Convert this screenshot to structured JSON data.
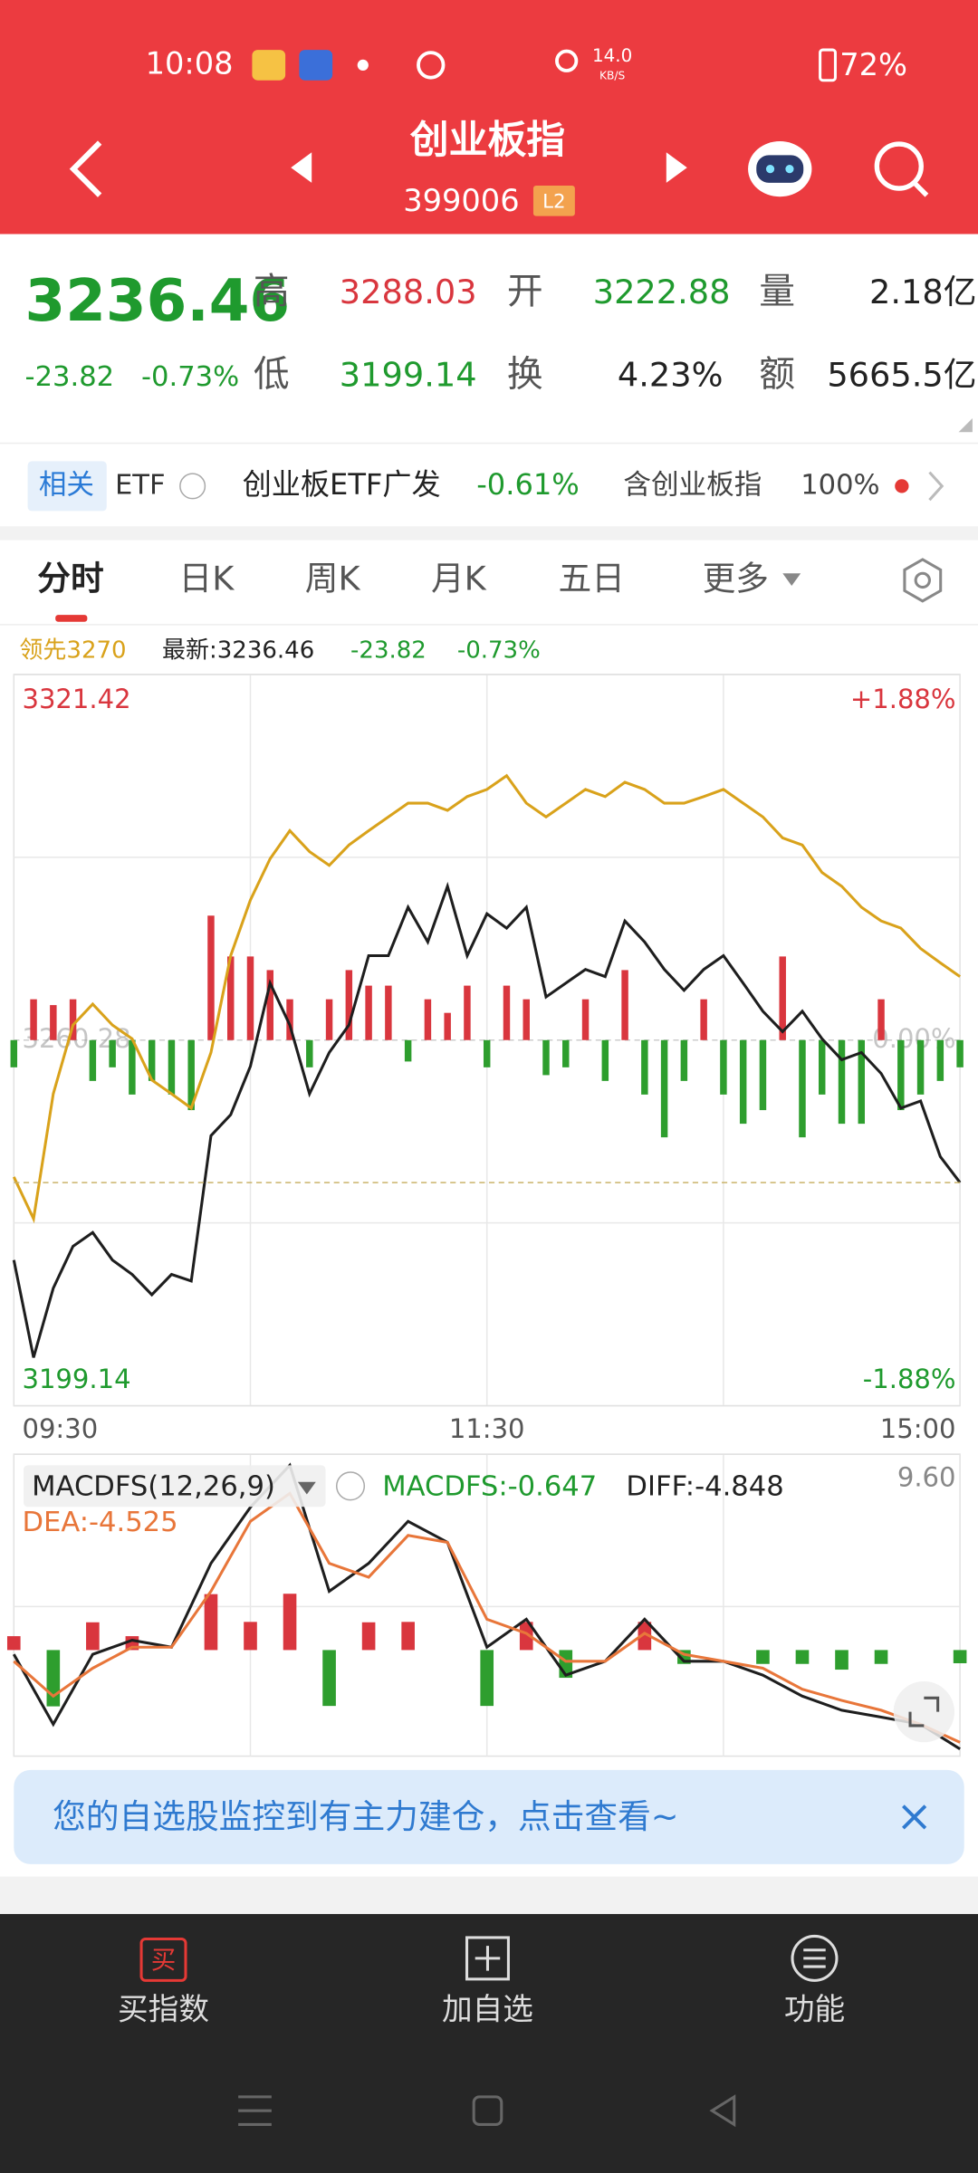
{
  "status_bar": {
    "time": "10:08",
    "net_speed": "14.0",
    "net_unit": "KB/S",
    "battery": "72%"
  },
  "header": {
    "title": "创业板指",
    "code": "399006",
    "badge": "L2"
  },
  "quote": {
    "price": "3236.46",
    "change": "-23.82",
    "change_pct": "-0.73%",
    "fields": [
      {
        "label": "高",
        "value": "3288.03",
        "color": "#d9363e"
      },
      {
        "label": "开",
        "value": "3222.88",
        "color": "#1f9a2e"
      },
      {
        "label": "量",
        "value": "2.18亿",
        "color": "#222222"
      },
      {
        "label": "低",
        "value": "3199.14",
        "color": "#1f9a2e"
      },
      {
        "label": "换",
        "value": "4.23%",
        "color": "#222222"
      },
      {
        "label": "额",
        "value": "5665.5亿",
        "color": "#222222"
      }
    ]
  },
  "etf": {
    "tag": "相关",
    "type": "ETF",
    "name": "创业板ETF广发",
    "change": "-0.61%",
    "holding_label": "含创业板指",
    "holding": "100%"
  },
  "tabs": [
    "分时",
    "日K",
    "周K",
    "月K",
    "五日",
    "更多"
  ],
  "chart_data": [
    {
      "type": "line",
      "legend": [
        "-23.82",
        "-0.73%"
      ],
      "series": [
        {
          "name": "领先3270",
          "color": "#d9a21b",
          "values": [
            3237.4,
            3230.4,
            3251.3,
            3262.8,
            3266.3,
            3262.8,
            3260.5,
            3253.6,
            3251.3,
            3248.9,
            3258.2,
            3274.4,
            3283.7,
            3290.6,
            3295.3,
            3291.8,
            3289.5,
            3292.9,
            3295.3,
            3297.6,
            3299.9,
            3299.9,
            3298.7,
            3301.0,
            3302.2,
            3304.5,
            3299.9,
            3297.6,
            3299.9,
            3302.2,
            3301.0,
            3303.4,
            3302.2,
            3299.9,
            3299.9,
            3301.0,
            3302.2,
            3299.9,
            3297.6,
            3294.1,
            3292.9,
            3288.3,
            3286.0,
            3282.5,
            3280.2,
            3279.0,
            3275.6,
            3273.2,
            3270.9
          ]
        },
        {
          "name": "最新:3236.46",
          "color": "#1e1e1e",
          "values": [
            3223.5,
            3207.2,
            3218.8,
            3225.8,
            3228.1,
            3223.5,
            3221.1,
            3217.7,
            3221.1,
            3220.0,
            3244.3,
            3247.8,
            3255.9,
            3269.8,
            3262.8,
            3251.3,
            3258.2,
            3262.8,
            3274.4,
            3274.4,
            3282.5,
            3276.7,
            3286.0,
            3274.4,
            3281.4,
            3279.0,
            3282.5,
            3267.5,
            3269.8,
            3272.1,
            3270.9,
            3280.2,
            3276.7,
            3272.1,
            3268.6,
            3272.1,
            3274.4,
            3269.8,
            3265.1,
            3261.7,
            3265.1,
            3260.5,
            3257.0,
            3258.2,
            3254.7,
            3248.9,
            3250.1,
            3240.8,
            3236.46
          ]
        }
      ],
      "bars": {
        "axis": "y2",
        "up_color": "#d9363e",
        "down_color": "#2e9e2e",
        "values": [
          -0.14,
          0.21,
          0.18,
          0.21,
          -0.21,
          -0.14,
          -0.28,
          -0.21,
          -0.28,
          -0.36,
          0.64,
          0.43,
          0.43,
          0.36,
          0.21,
          -0.14,
          0.21,
          0.36,
          0.28,
          0.28,
          -0.11,
          0.21,
          0.14,
          0.28,
          -0.14,
          0.28,
          0.21,
          -0.18,
          -0.14,
          0.21,
          -0.21,
          0.36,
          -0.28,
          -0.5,
          -0.21,
          0.21,
          -0.28,
          -0.43,
          -0.36,
          0.43,
          -0.5,
          -0.28,
          -0.43,
          -0.43,
          0.21,
          -0.36,
          -0.28,
          -0.21,
          -0.14
        ]
      },
      "ylim": [
        3199.14,
        3321.42
      ],
      "yticks": [
        3321.42,
        3260.28,
        3199.14
      ],
      "ytick_colors": [
        "#d9363e",
        "#a0a0a0",
        "#1f9a2e"
      ],
      "y2lim": [
        -1.88,
        1.88
      ],
      "y2ticks": [
        {
          "value": 1.88,
          "label": "+1.88%"
        },
        {
          "value": 0,
          "label": "0.00%"
        },
        {
          "value": -1.88,
          "label": "-1.88%"
        }
      ],
      "y2tick_colors": [
        "#d9363e",
        "#a0a0a0",
        "#1f9a2e"
      ],
      "x_labels": [
        "09:30",
        "11:30",
        "15:00"
      ]
    },
    {
      "type": "macd",
      "title": "MACDFS(12,26,9)",
      "legend": [
        "MACDFS:-0.647",
        "DIFF:-4.848",
        "DEA:-4.525"
      ],
      "legend_colors": [
        "#1f9a2e",
        "#222222",
        "#e8763a"
      ],
      "series": [
        {
          "color": "#1e1e1e",
          "values": [
            -0.21,
            -3.64,
            -0.21,
            0.48,
            0.14,
            4.25,
            7.0,
            9.06,
            2.88,
            4.25,
            6.31,
            5.28,
            0.14,
            1.51,
            -1.23,
            -0.55,
            1.51,
            -0.55,
            -0.55,
            -1.23,
            -2.26,
            -2.95,
            -3.29,
            -3.64,
            -4.848
          ]
        },
        {
          "color": "#e8763a",
          "values": [
            -0.55,
            -2.26,
            -0.89,
            0.14,
            0.14,
            2.88,
            6.31,
            7.68,
            4.25,
            3.57,
            5.62,
            5.28,
            1.51,
            0.82,
            -0.55,
            -0.55,
            0.82,
            -0.21,
            -0.55,
            -0.89,
            -1.92,
            -2.47,
            -2.95,
            -3.64,
            -4.525
          ]
        }
      ],
      "bars": {
        "up_color": "#d9363e",
        "down_color": "#2e9e2e",
        "values": [
          0.68,
          -2.76,
          1.36,
          0.68,
          0,
          2.74,
          1.38,
          2.76,
          -2.74,
          1.36,
          1.38,
          0,
          -2.74,
          1.38,
          -1.36,
          0,
          1.38,
          -0.68,
          0,
          -0.68,
          -0.68,
          -0.96,
          -0.68,
          0,
          -0.647
        ]
      },
      "ylim": [
        -5.2,
        9.6
      ],
      "yticks": [
        {
          "value": 9.6,
          "label": "9.60"
        }
      ]
    }
  ],
  "banner": "您的自选股监控到有主力建仓，点击查看~",
  "bottom_nav": {
    "buy_icon": "买",
    "items": [
      "买指数",
      "加自选",
      "功能"
    ]
  }
}
